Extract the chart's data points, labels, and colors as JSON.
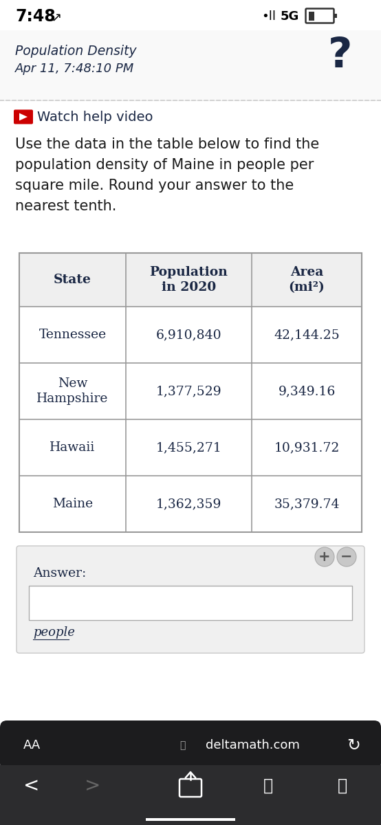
{
  "status_bar_time": "7:48",
  "status_bar_arrow": "↗",
  "page_title": "Population Density",
  "page_date": "Apr 11, 7:48:10 PM",
  "watch_help": "Watch help video",
  "question_text": "Use the data in the table below to find the\npopulation density of Maine in people per\nsquare mile. Round your answer to the\nnearest tenth.",
  "table_headers": [
    "State",
    "Population\nin 2020",
    "Area\n(mi²)"
  ],
  "table_data": [
    [
      "Tennessee",
      "6,910,840",
      "42,144.25"
    ],
    [
      "New\nHampshire",
      "1,377,529",
      "9,349.16"
    ],
    [
      "Hawaii",
      "1,455,271",
      "10,931.72"
    ],
    [
      "Maine",
      "1,362,359",
      "35,379.74"
    ]
  ],
  "answer_label": "Answer:",
  "unit_label": "people",
  "browser_bar_text": "deltamath.com",
  "bg_color": "#ffffff",
  "table_header_bg": "#efefef",
  "table_border_color": "#999999",
  "text_dark": "#1a2744",
  "body_text_color": "#1a1a1a",
  "answer_box_bg": "#f0f0f0",
  "nav_bar_bg": "#1c1c1e",
  "bottom_bar_bg": "#2c2c2e",
  "separator_color": "#cccccc"
}
